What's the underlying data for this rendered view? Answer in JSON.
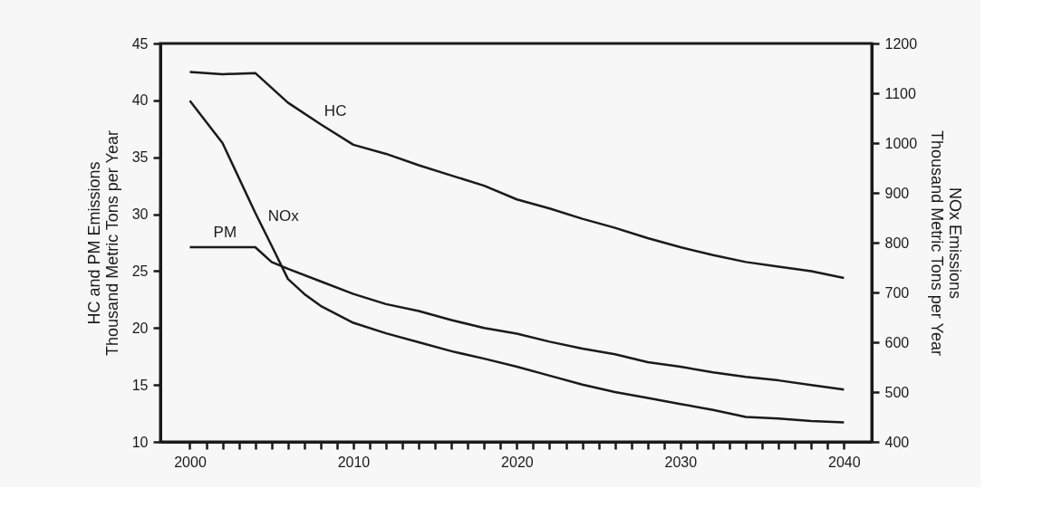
{
  "chart_data": {
    "type": "line",
    "ylabel": "HC and PM Emissions\nThousand Metric Tons per Year",
    "y2label": "NOx Emissions\nThousand Metric Tons per Year",
    "x": [
      2000,
      2002,
      2004,
      2005,
      2006,
      2007,
      2008,
      2010,
      2012,
      2014,
      2016,
      2018,
      2020,
      2022,
      2024,
      2026,
      2028,
      2030,
      2032,
      2034,
      2036,
      2038,
      2040
    ],
    "series": [
      {
        "name": "HC",
        "color": "#1a1a1a",
        "values": [
          42.5,
          42.3,
          42.4,
          null,
          39.8,
          null,
          37.9,
          36.1,
          35.3,
          34.3,
          33.4,
          32.5,
          31.3,
          30.5,
          29.6,
          28.8,
          27.9,
          27.1,
          26.4,
          25.8,
          25.4,
          25.0,
          24.4
        ]
      },
      {
        "name": "NOx",
        "color": "#1a1a1a",
        "axis": "y2",
        "values": [
          1085,
          1000,
          860,
          794,
          727,
          697,
          673,
          639,
          618,
          600,
          582,
          567,
          551,
          533,
          515,
          500,
          488,
          476,
          464,
          450,
          447,
          442,
          439
        ]
      },
      {
        "name": "PM",
        "color": "#1a1a1a",
        "values": [
          27.1,
          27.1,
          27.1,
          25.8,
          25.2,
          null,
          24.1,
          23.0,
          22.1,
          21.5,
          20.7,
          20.0,
          19.5,
          18.8,
          18.2,
          17.7,
          17.0,
          16.6,
          16.1,
          15.7,
          15.4,
          15.0,
          14.6
        ]
      }
    ],
    "xlim": [
      1998.2,
      2041.7
    ],
    "xticks": [
      2000,
      {
        "value": 2001,
        "label": null
      },
      {
        "value": 2002,
        "label": null
      },
      {
        "value": 2003,
        "label": null
      },
      {
        "value": 2004,
        "label": null
      },
      {
        "value": 2005,
        "label": null
      },
      {
        "value": 2006,
        "label": null
      },
      {
        "value": 2007,
        "label": null
      },
      {
        "value": 2008,
        "label": null
      },
      {
        "value": 2009,
        "label": null
      },
      2010,
      {
        "value": 2011,
        "label": null
      },
      {
        "value": 2012,
        "label": null
      },
      {
        "value": 2013,
        "label": null
      },
      {
        "value": 2014,
        "label": null
      },
      {
        "value": 2015,
        "label": null
      },
      {
        "value": 2016,
        "label": null
      },
      {
        "value": 2017,
        "label": null
      },
      {
        "value": 2018,
        "label": null
      },
      {
        "value": 2019,
        "label": null
      },
      2020,
      {
        "value": 2021,
        "label": null
      },
      {
        "value": 2022,
        "label": null
      },
      {
        "value": 2023,
        "label": null
      },
      {
        "value": 2024,
        "label": null
      },
      {
        "value": 2025,
        "label": null
      },
      {
        "value": 2026,
        "label": null
      },
      {
        "value": 2027,
        "label": null
      },
      {
        "value": 2028,
        "label": null
      },
      {
        "value": 2029,
        "label": null
      },
      2030,
      {
        "value": 2031,
        "label": null
      },
      {
        "value": 2032,
        "label": null
      },
      {
        "value": 2033,
        "label": null
      },
      {
        "value": 2034,
        "label": null
      },
      {
        "value": 2035,
        "label": null
      },
      {
        "value": 2036,
        "label": null
      },
      {
        "value": 2037,
        "label": null
      },
      {
        "value": 2038,
        "label": null
      },
      {
        "value": 2039,
        "label": null
      },
      2040
    ],
    "ylim": [
      10,
      45
    ],
    "yticks": [
      10,
      15,
      20,
      25,
      30,
      35,
      40,
      45
    ],
    "y2lim": [
      400,
      1200
    ],
    "y2ticks": [
      400,
      500,
      600,
      700,
      800,
      900,
      1000,
      1100,
      1200
    ],
    "grid": false,
    "marker": "none",
    "line_style": "solid"
  }
}
